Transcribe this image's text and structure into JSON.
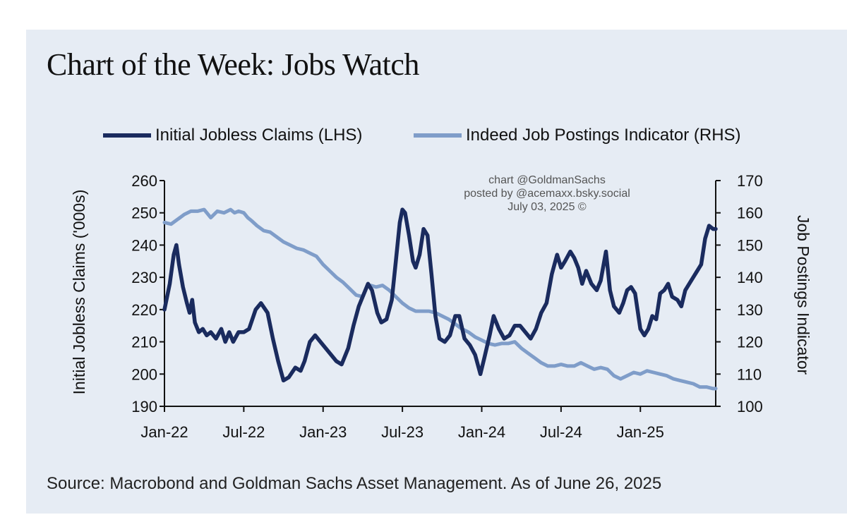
{
  "header": {
    "title": "Chart of the Week: Jobs Watch"
  },
  "legend": {
    "claims_label": "Initial Jobless Claims (LHS)",
    "postings_label": "Indeed Job Postings Indicator (RHS)"
  },
  "watermark": {
    "line1": "chart @GoldmanSachs",
    "line2": "posted by @acemaxx.bsky.social",
    "line3": "July 03, 2025 ©"
  },
  "footer": {
    "source": "Source: Macrobond and Goldman Sachs Asset Management. As of June 26, 2025"
  },
  "colors": {
    "panel_bg": "#e6ecf4",
    "claims": "#1a2b5e",
    "postings": "#7f9dc9"
  },
  "chart_data": {
    "type": "line",
    "title": "Chart of the Week: Jobs Watch",
    "xlabel": "",
    "ylabel": "Initial Jobless Claims ('000s)",
    "ylabel_right": "Job Postings Indicator",
    "x_unit": "months since Jan 2022",
    "xlim": [
      0,
      41.7
    ],
    "ylim": [
      190,
      260
    ],
    "ylim_right": [
      100,
      170
    ],
    "x_ticks": [
      {
        "x": 0,
        "label": "Jan-22"
      },
      {
        "x": 6,
        "label": "Jul-22"
      },
      {
        "x": 12,
        "label": "Jan-23"
      },
      {
        "x": 18,
        "label": "Jul-23"
      },
      {
        "x": 24,
        "label": "Jan-24"
      },
      {
        "x": 30,
        "label": "Jul-24"
      },
      {
        "x": 36,
        "label": "Jan-25"
      }
    ],
    "y_ticks_left": [
      190,
      200,
      210,
      220,
      230,
      240,
      250,
      260
    ],
    "y_ticks_right": [
      100,
      110,
      120,
      130,
      140,
      150,
      160,
      170
    ],
    "series": [
      {
        "name": "Initial Jobless Claims (LHS)",
        "axis": "left",
        "color": "#1a2b5e",
        "x": [
          0,
          0.4,
          0.7,
          0.9,
          1.1,
          1.4,
          1.7,
          1.9,
          2.1,
          2.3,
          2.6,
          2.9,
          3.2,
          3.5,
          3.9,
          4.3,
          4.6,
          4.9,
          5.2,
          5.6,
          6,
          6.4,
          6.9,
          7.3,
          7.8,
          8.2,
          8.6,
          9,
          9.4,
          9.9,
          10.3,
          10.6,
          11,
          11.4,
          11.8,
          12.2,
          12.6,
          13,
          13.4,
          13.9,
          14.3,
          14.7,
          15,
          15.4,
          15.7,
          16.1,
          16.4,
          16.8,
          17.2,
          17.5,
          17.8,
          18,
          18.2,
          18.5,
          18.8,
          19,
          19.3,
          19.6,
          19.9,
          20.2,
          20.5,
          20.8,
          21.2,
          21.6,
          22,
          22.3,
          22.7,
          23.1,
          23.5,
          23.9,
          24.2,
          24.6,
          24.9,
          25.3,
          25.7,
          26.1,
          26.5,
          26.9,
          27.3,
          27.7,
          28.1,
          28.5,
          28.9,
          29.3,
          29.7,
          30,
          30.3,
          30.7,
          31,
          31.3,
          31.6,
          31.9,
          32.3,
          32.7,
          33,
          33.4,
          33.7,
          34,
          34.4,
          34.7,
          35,
          35.3,
          35.6,
          36,
          36.3,
          36.6,
          36.9,
          37.2,
          37.5,
          37.8,
          38.1,
          38.4,
          38.8,
          39.1,
          39.4,
          39.7,
          40,
          40.3,
          40.6,
          40.9,
          41.2,
          41.5,
          41.7
        ],
        "values": [
          220,
          228,
          237,
          240,
          234,
          227,
          222,
          219,
          223,
          216,
          213,
          214,
          212,
          213,
          211,
          214,
          210,
          213,
          210,
          213,
          213,
          214,
          220,
          222,
          219,
          211,
          204,
          198,
          199,
          202,
          201,
          204,
          210,
          212,
          210,
          208,
          206,
          204,
          203,
          208,
          215,
          221,
          224,
          228,
          226,
          219,
          216,
          217,
          223,
          235,
          247,
          251,
          250,
          243,
          235,
          233,
          237,
          245,
          243,
          231,
          218,
          211,
          210,
          212,
          218,
          218,
          211,
          209,
          206,
          200,
          205,
          212,
          218,
          214,
          211,
          212,
          215,
          215,
          213,
          211,
          214,
          219,
          222,
          231,
          237,
          233,
          235,
          238,
          236,
          233,
          228,
          232,
          228,
          226,
          229,
          238,
          226,
          221,
          219,
          222,
          226,
          227,
          225,
          214,
          212,
          214,
          218,
          217,
          225,
          226,
          228,
          224,
          223,
          221,
          226,
          228,
          230,
          232,
          234,
          242,
          246,
          245,
          245
        ],
        "source": "claims"
      },
      {
        "name": "Indeed Job Postings Indicator (RHS)",
        "axis": "right",
        "color": "#7f9dc9",
        "x": [
          0,
          0.5,
          1,
          1.5,
          2,
          2.5,
          3,
          3.5,
          4,
          4.5,
          5,
          5.3,
          5.6,
          6,
          6.3,
          6.6,
          7,
          7.5,
          8,
          8.5,
          9,
          9.5,
          10,
          10.5,
          11,
          11.5,
          12,
          12.5,
          13,
          13.5,
          14,
          14.5,
          15,
          15.3,
          15.6,
          16,
          16.5,
          17,
          17.5,
          18,
          18.5,
          19,
          19.5,
          20,
          20.5,
          21,
          21.5,
          22,
          22.5,
          23,
          23.5,
          24,
          24.5,
          25,
          25.5,
          26,
          26.5,
          27,
          27.5,
          28,
          28.5,
          29,
          29.5,
          30,
          30.5,
          31,
          31.5,
          32,
          32.5,
          33,
          33.5,
          34,
          34.5,
          35,
          35.5,
          36,
          36.5,
          37,
          37.5,
          38,
          38.5,
          39,
          39.5,
          40,
          40.5,
          41,
          41.5,
          41.7
        ],
        "values": [
          157,
          156.5,
          158,
          159.5,
          160.5,
          160.5,
          161,
          158.5,
          160.5,
          160,
          161,
          160,
          160.5,
          160,
          158.5,
          157.5,
          156,
          154.5,
          154,
          152.5,
          151,
          150,
          149,
          148.5,
          147.5,
          146.5,
          144,
          142,
          140,
          138.5,
          136.5,
          134.5,
          134,
          137,
          137.5,
          137,
          137.5,
          136,
          134,
          132,
          130.5,
          129.5,
          129.5,
          129.5,
          129,
          128,
          127,
          125.5,
          124,
          123,
          121.5,
          120.5,
          119.5,
          119,
          119.5,
          119.5,
          120,
          118,
          116.5,
          115,
          113.5,
          112.5,
          112.5,
          113,
          112.5,
          112.5,
          113.5,
          112.5,
          111.5,
          112,
          111.5,
          109.5,
          108.5,
          109.5,
          110.5,
          110,
          111,
          110.5,
          110,
          109.5,
          108.5,
          108,
          107.5,
          107,
          106,
          106,
          105.5,
          105.5
        ],
        "source": "postings"
      }
    ]
  }
}
